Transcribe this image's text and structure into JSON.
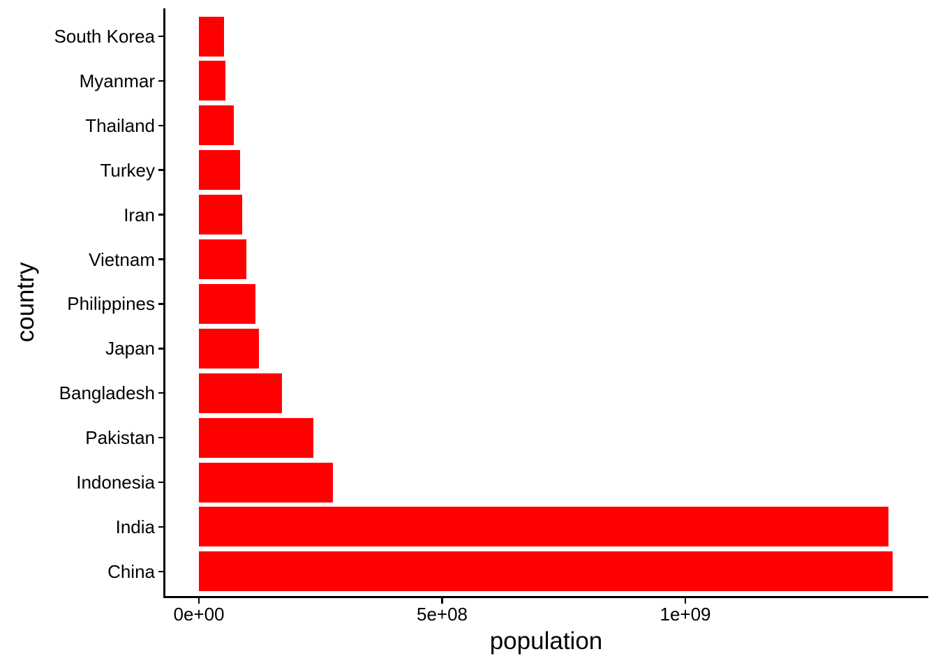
{
  "figure": {
    "background": "#FFFFFF",
    "axis_color": "#000000",
    "text_color": "#000000"
  },
  "chart_data": {
    "type": "bar",
    "orientation": "horizontal",
    "title": "",
    "xlabel": "population",
    "ylabel": "country",
    "bar_color": "#FF0000",
    "grid": false,
    "legend": "none",
    "categories_top_to_bottom": [
      "South Korea",
      "Myanmar",
      "Thailand",
      "Turkey",
      "Iran",
      "Vietnam",
      "Philippines",
      "Japan",
      "Bangladesh",
      "Pakistan",
      "Indonesia",
      "India",
      "China"
    ],
    "values_top_to_bottom": [
      51815810,
      54179306,
      71697030,
      85341241,
      88550570,
      98186856,
      115559009,
      123951692,
      171186372,
      235824862,
      275501339,
      1417173173,
      1425887337
    ],
    "x_ticks": [
      {
        "value": 0,
        "label": "0e+00"
      },
      {
        "value": 500000000,
        "label": "5e+08"
      },
      {
        "value": 1000000000,
        "label": "1e+09"
      }
    ],
    "xlim": [
      0,
      1425887337
    ],
    "x_axis_range_with_expansion": [
      -71500000,
      1499000000
    ]
  }
}
